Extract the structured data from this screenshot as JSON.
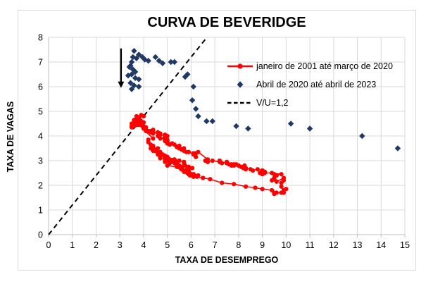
{
  "chart_title": "CURVA DE BEVERIDGE",
  "colors": {
    "series1": "#ff0000",
    "series2": "#1f3864",
    "reference_line": "#000000",
    "gridline": "#d9d9d9",
    "axis_line": "#bfbfbf",
    "tick_text": "#000000",
    "frame_border": "#d9d9d9"
  },
  "legend": {
    "items": [
      {
        "label": "janeiro de 2001 até março de 2020",
        "swatch": "red-line-circle-marker"
      },
      {
        "label": "Abril de 2020 até abril de 2023",
        "swatch": "navy-diamond-marker"
      },
      {
        "label": "V/U=1,2",
        "swatch": "black-dashed-line"
      }
    ]
  },
  "chart_data": {
    "type": "scatter",
    "title": "CURVA DE BEVERIDGE",
    "xlabel": "TAXA DE DESEMPREGO",
    "ylabel": "TAXA DE VAGAS",
    "xlim": [
      0,
      15
    ],
    "ylim": [
      0,
      8
    ],
    "x_ticks": [
      "0",
      "1",
      "2",
      "3",
      "4",
      "5",
      "6",
      "7",
      "8",
      "9",
      "10",
      "11",
      "12",
      "13",
      "14",
      "15"
    ],
    "y_ticks": [
      "0",
      "1",
      "2",
      "3",
      "4",
      "5",
      "6",
      "7",
      "8"
    ],
    "grid": true,
    "legend_position": "inside-upper-right",
    "series": [
      {
        "name": "janeiro de 2001 até março de 2020",
        "style": "line-with-circle-markers",
        "color": "#ff0000",
        "points": [
          [
            4.2,
            3.85
          ],
          [
            4.2,
            3.75
          ],
          [
            4.3,
            3.65
          ],
          [
            4.4,
            3.6
          ],
          [
            4.3,
            3.5
          ],
          [
            4.5,
            3.4
          ],
          [
            4.6,
            3.3
          ],
          [
            4.9,
            3.2
          ],
          [
            5.0,
            3.15
          ],
          [
            5.3,
            3.05
          ],
          [
            5.5,
            3.0
          ],
          [
            5.7,
            2.95
          ],
          [
            5.7,
            2.9
          ],
          [
            5.75,
            2.8
          ],
          [
            5.9,
            2.75
          ],
          [
            6.05,
            2.7
          ],
          [
            5.9,
            2.65
          ],
          [
            5.85,
            2.7
          ],
          [
            5.8,
            2.6
          ],
          [
            5.9,
            2.55
          ],
          [
            5.75,
            2.6
          ],
          [
            5.7,
            2.55
          ],
          [
            5.85,
            2.5
          ],
          [
            6.0,
            2.45
          ],
          [
            5.85,
            2.5
          ],
          [
            5.9,
            2.45
          ],
          [
            5.95,
            2.4
          ],
          [
            6.05,
            2.4
          ],
          [
            6.1,
            2.35
          ],
          [
            6.3,
            2.4
          ],
          [
            6.25,
            2.35
          ],
          [
            6.15,
            2.4
          ],
          [
            6.1,
            2.45
          ],
          [
            6.0,
            2.45
          ],
          [
            5.85,
            2.5
          ],
          [
            5.75,
            2.55
          ],
          [
            5.7,
            2.6
          ],
          [
            5.6,
            2.65
          ],
          [
            5.8,
            2.6
          ],
          [
            5.6,
            2.7
          ],
          [
            5.6,
            2.75
          ],
          [
            5.55,
            2.7
          ],
          [
            5.5,
            2.75
          ],
          [
            5.4,
            2.8
          ],
          [
            5.45,
            2.75
          ],
          [
            5.5,
            2.8
          ],
          [
            5.4,
            2.85
          ],
          [
            5.4,
            2.9
          ],
          [
            5.3,
            2.9
          ],
          [
            5.4,
            2.95
          ],
          [
            5.2,
            3.0
          ],
          [
            5.15,
            2.95
          ],
          [
            5.1,
            3.0
          ],
          [
            5.0,
            3.05
          ],
          [
            5.0,
            3.0
          ],
          [
            4.9,
            3.05
          ],
          [
            5.0,
            3.1
          ],
          [
            5.0,
            3.15
          ],
          [
            4.95,
            3.1
          ],
          [
            4.9,
            3.15
          ],
          [
            4.7,
            3.2
          ],
          [
            4.8,
            3.25
          ],
          [
            4.7,
            3.3
          ],
          [
            4.65,
            3.25
          ],
          [
            4.6,
            3.3
          ],
          [
            4.6,
            3.35
          ],
          [
            4.7,
            3.3
          ],
          [
            4.7,
            3.35
          ],
          [
            4.5,
            3.4
          ],
          [
            4.4,
            3.45
          ],
          [
            4.5,
            3.4
          ],
          [
            4.4,
            3.45
          ],
          [
            4.6,
            3.5
          ],
          [
            4.5,
            3.45
          ],
          [
            4.4,
            3.5
          ],
          [
            4.5,
            3.45
          ],
          [
            4.4,
            3.4
          ],
          [
            4.6,
            3.35
          ],
          [
            4.7,
            3.3
          ],
          [
            4.6,
            3.25
          ],
          [
            4.7,
            3.2
          ],
          [
            4.7,
            3.15
          ],
          [
            4.7,
            3.1
          ],
          [
            5.0,
            3.05
          ],
          [
            5.0,
            3.0
          ],
          [
            4.9,
            2.95
          ],
          [
            5.1,
            2.9
          ],
          [
            5.0,
            2.8
          ],
          [
            5.4,
            2.75
          ],
          [
            5.6,
            2.65
          ],
          [
            5.8,
            2.55
          ],
          [
            6.1,
            2.45
          ],
          [
            6.1,
            2.35
          ],
          [
            6.5,
            2.3
          ],
          [
            6.8,
            2.25
          ],
          [
            7.3,
            2.1
          ],
          [
            7.8,
            2.05
          ],
          [
            8.3,
            1.95
          ],
          [
            8.7,
            1.9
          ],
          [
            9.0,
            1.85
          ],
          [
            9.4,
            1.8
          ],
          [
            9.5,
            1.7
          ],
          [
            9.5,
            1.65
          ],
          [
            9.6,
            1.7
          ],
          [
            9.8,
            1.7
          ],
          [
            10.0,
            1.85
          ],
          [
            9.9,
            1.7
          ],
          [
            9.9,
            1.8
          ],
          [
            9.8,
            1.95
          ],
          [
            9.8,
            2.1
          ],
          [
            9.9,
            2.2
          ],
          [
            9.9,
            2.3
          ],
          [
            9.6,
            2.15
          ],
          [
            9.4,
            2.2
          ],
          [
            9.5,
            2.25
          ],
          [
            9.5,
            2.3
          ],
          [
            9.6,
            2.4
          ],
          [
            9.5,
            2.45
          ],
          [
            9.8,
            2.45
          ],
          [
            9.4,
            2.5
          ],
          [
            9.1,
            2.5
          ],
          [
            9.0,
            2.45
          ],
          [
            8.9,
            2.5
          ],
          [
            9.0,
            2.55
          ],
          [
            9.0,
            2.5
          ],
          [
            9.1,
            2.55
          ],
          [
            9.0,
            2.6
          ],
          [
            9.0,
            2.55
          ],
          [
            9.0,
            2.6
          ],
          [
            8.8,
            2.65
          ],
          [
            8.6,
            2.6
          ],
          [
            8.5,
            2.65
          ],
          [
            8.3,
            2.7
          ],
          [
            8.3,
            2.65
          ],
          [
            8.2,
            2.7
          ],
          [
            8.2,
            2.75
          ],
          [
            8.2,
            2.7
          ],
          [
            8.2,
            2.75
          ],
          [
            8.25,
            2.8
          ],
          [
            8.1,
            2.75
          ],
          [
            7.8,
            2.8
          ],
          [
            7.8,
            2.85
          ],
          [
            7.7,
            2.8
          ],
          [
            7.9,
            2.85
          ],
          [
            8.0,
            2.8
          ],
          [
            7.7,
            2.85
          ],
          [
            7.5,
            2.9
          ],
          [
            7.6,
            2.85
          ],
          [
            7.5,
            2.9
          ],
          [
            7.5,
            2.95
          ],
          [
            7.3,
            2.9
          ],
          [
            7.2,
            2.95
          ],
          [
            7.2,
            3.0
          ],
          [
            7.2,
            2.95
          ],
          [
            6.9,
            3.0
          ],
          [
            6.7,
            2.95
          ],
          [
            6.6,
            3.0
          ],
          [
            6.7,
            2.95
          ],
          [
            6.7,
            3.05
          ],
          [
            6.3,
            3.35
          ],
          [
            6.2,
            3.15
          ],
          [
            6.1,
            3.3
          ],
          [
            6.2,
            3.3
          ],
          [
            6.1,
            3.25
          ],
          [
            5.9,
            3.35
          ],
          [
            5.7,
            3.4
          ],
          [
            5.8,
            3.35
          ],
          [
            5.6,
            3.45
          ],
          [
            5.7,
            3.5
          ],
          [
            5.5,
            3.55
          ],
          [
            5.5,
            3.5
          ],
          [
            5.4,
            3.55
          ],
          [
            5.5,
            3.6
          ],
          [
            5.3,
            3.65
          ],
          [
            5.2,
            3.7
          ],
          [
            5.1,
            3.65
          ],
          [
            5.0,
            3.7
          ],
          [
            5.0,
            3.75
          ],
          [
            5.0,
            3.7
          ],
          [
            5.0,
            3.75
          ],
          [
            4.9,
            3.8
          ],
          [
            4.9,
            3.85
          ],
          [
            5.0,
            3.8
          ],
          [
            5.0,
            3.85
          ],
          [
            4.7,
            3.9
          ],
          [
            4.9,
            3.95
          ],
          [
            4.9,
            3.9
          ],
          [
            4.9,
            3.95
          ],
          [
            5.0,
            4.0
          ],
          [
            4.9,
            4.05
          ],
          [
            4.6,
            4.0
          ],
          [
            4.7,
            4.05
          ],
          [
            4.7,
            4.1
          ],
          [
            4.6,
            4.15
          ],
          [
            4.4,
            4.1
          ],
          [
            4.4,
            4.15
          ],
          [
            4.4,
            4.2
          ],
          [
            4.3,
            4.15
          ],
          [
            4.3,
            4.2
          ],
          [
            4.4,
            4.25
          ],
          [
            4.2,
            4.2
          ],
          [
            4.1,
            4.25
          ],
          [
            4.1,
            4.2
          ],
          [
            4.1,
            4.25
          ],
          [
            4.0,
            4.3
          ],
          [
            4.1,
            4.35
          ],
          [
            4.0,
            4.4
          ],
          [
            3.9,
            4.45
          ],
          [
            3.8,
            4.5
          ],
          [
            4.0,
            4.55
          ],
          [
            3.9,
            4.6
          ],
          [
            3.8,
            4.65
          ],
          [
            3.7,
            4.7
          ],
          [
            3.8,
            4.75
          ],
          [
            3.7,
            4.8
          ],
          [
            3.9,
            4.85
          ],
          [
            4.0,
            4.8
          ],
          [
            3.8,
            4.75
          ],
          [
            3.8,
            4.7
          ],
          [
            3.6,
            4.65
          ],
          [
            3.6,
            4.6
          ],
          [
            3.7,
            4.55
          ],
          [
            3.7,
            4.5
          ],
          [
            3.7,
            4.45
          ],
          [
            3.5,
            4.5
          ],
          [
            3.6,
            4.45
          ],
          [
            3.5,
            4.4
          ],
          [
            3.5,
            4.35
          ],
          [
            3.6,
            4.4
          ],
          [
            3.8,
            4.45
          ],
          [
            4.4,
            3.9
          ]
        ]
      },
      {
        "name": "Abril de 2020 até abril de 2023",
        "style": "diamond-markers-only",
        "color": "#1f3864",
        "points": [
          [
            14.7,
            3.5
          ],
          [
            13.2,
            4.0
          ],
          [
            11.0,
            4.3
          ],
          [
            10.2,
            4.5
          ],
          [
            8.4,
            4.3
          ],
          [
            7.9,
            4.4
          ],
          [
            6.9,
            4.6
          ],
          [
            6.65,
            4.6
          ],
          [
            6.3,
            4.8
          ],
          [
            6.2,
            5.1
          ],
          [
            6.05,
            5.45
          ],
          [
            6.1,
            6.0
          ],
          [
            5.85,
            6.5
          ],
          [
            5.75,
            6.4
          ],
          [
            5.3,
            7.0
          ],
          [
            5.15,
            7.0
          ],
          [
            4.8,
            6.95
          ],
          [
            4.65,
            7.05
          ],
          [
            4.5,
            7.2
          ],
          [
            4.2,
            7.05
          ],
          [
            4.05,
            7.1
          ],
          [
            3.95,
            7.2
          ],
          [
            3.8,
            7.3
          ],
          [
            3.6,
            7.45
          ],
          [
            3.55,
            7.2
          ],
          [
            3.7,
            7.15
          ],
          [
            3.5,
            7.0
          ],
          [
            3.45,
            6.85
          ],
          [
            3.4,
            6.8
          ],
          [
            3.55,
            6.7
          ],
          [
            3.65,
            6.6
          ],
          [
            3.5,
            6.5
          ],
          [
            3.35,
            6.45
          ],
          [
            3.65,
            6.35
          ],
          [
            3.8,
            6.3
          ],
          [
            3.45,
            6.15
          ],
          [
            3.6,
            6.05
          ],
          [
            3.8,
            6.0
          ],
          [
            3.5,
            5.9
          ]
        ]
      },
      {
        "name": "V/U=1,2",
        "style": "dashed-reference-line",
        "color": "#000000",
        "slope": 1.2,
        "points": [
          [
            0,
            0
          ],
          [
            6.667,
            8
          ]
        ]
      }
    ],
    "annotations": [
      {
        "type": "arrow-down",
        "x": 3.05,
        "y_from": 7.55,
        "y_to": 5.95,
        "color": "#000000"
      }
    ]
  }
}
